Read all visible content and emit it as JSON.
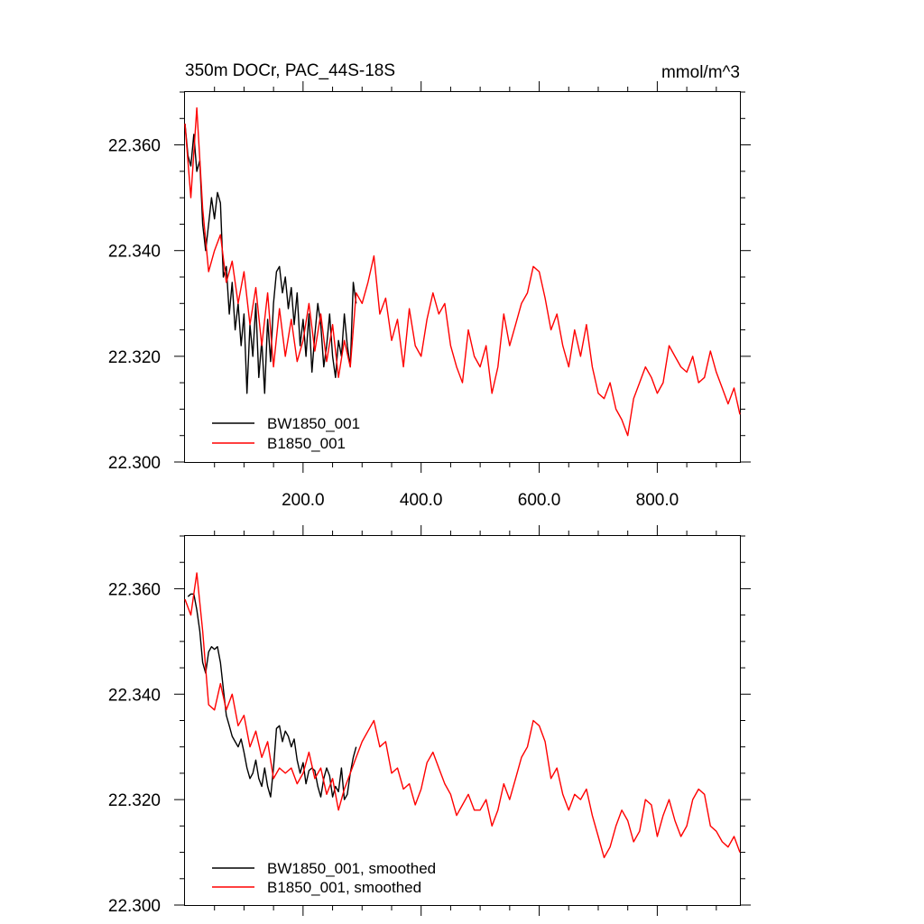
{
  "chart_data": [
    {
      "type": "line",
      "title_left": "350m DOCr, PAC_44S-18S",
      "title_right": "mmol/m^3",
      "xlabel": "",
      "ylabel": "",
      "xlim": [
        0,
        940
      ],
      "ylim": [
        22.3,
        22.37
      ],
      "x_ticks": [
        200,
        400,
        600,
        800
      ],
      "x_tick_labels": [
        "200.0",
        "400.0",
        "600.0",
        "800.0"
      ],
      "y_ticks": [
        22.3,
        22.32,
        22.34,
        22.36
      ],
      "y_tick_labels": [
        "22.300",
        "22.320",
        "22.340",
        "22.360"
      ],
      "grid": false,
      "legend_position": "bottom-left",
      "series": [
        {
          "name": "BW1850_001",
          "color": "#000000",
          "x": [
            0,
            5,
            10,
            15,
            20,
            25,
            30,
            35,
            40,
            45,
            50,
            55,
            60,
            65,
            70,
            75,
            80,
            85,
            90,
            95,
            100,
            105,
            110,
            115,
            120,
            125,
            130,
            135,
            140,
            145,
            150,
            155,
            160,
            165,
            170,
            175,
            180,
            185,
            190,
            195,
            200,
            205,
            210,
            215,
            220,
            225,
            230,
            235,
            240,
            245,
            250,
            255,
            260,
            265,
            270,
            275,
            280,
            285,
            290
          ],
          "values": [
            22.364,
            22.358,
            22.356,
            22.362,
            22.355,
            22.357,
            22.345,
            22.34,
            22.345,
            22.35,
            22.346,
            22.351,
            22.349,
            22.335,
            22.337,
            22.328,
            22.334,
            22.325,
            22.33,
            22.322,
            22.328,
            22.313,
            22.326,
            22.32,
            22.33,
            22.316,
            22.323,
            22.313,
            22.327,
            22.319,
            22.33,
            22.336,
            22.337,
            22.332,
            22.335,
            22.329,
            22.333,
            22.326,
            22.332,
            22.322,
            22.327,
            22.32,
            22.328,
            22.317,
            22.324,
            22.33,
            22.326,
            22.318,
            22.322,
            22.328,
            22.32,
            22.316,
            22.323,
            22.32,
            22.328,
            22.322,
            22.318,
            22.334,
            22.33
          ]
        },
        {
          "name": "B1850_001",
          "color": "#ff0000",
          "x": [
            0,
            10,
            20,
            30,
            40,
            50,
            60,
            70,
            80,
            90,
            100,
            110,
            120,
            130,
            140,
            150,
            160,
            170,
            180,
            190,
            200,
            210,
            220,
            230,
            240,
            250,
            260,
            270,
            280,
            290,
            300,
            310,
            320,
            330,
            340,
            350,
            360,
            370,
            380,
            390,
            400,
            410,
            420,
            430,
            440,
            450,
            460,
            470,
            480,
            490,
            500,
            510,
            520,
            530,
            540,
            550,
            560,
            570,
            580,
            590,
            600,
            610,
            620,
            630,
            640,
            650,
            660,
            670,
            680,
            690,
            700,
            710,
            720,
            730,
            740,
            750,
            760,
            770,
            780,
            790,
            800,
            810,
            820,
            830,
            840,
            850,
            860,
            870,
            880,
            890,
            900,
            910,
            920,
            930,
            940
          ],
          "values": [
            22.364,
            22.35,
            22.367,
            22.348,
            22.336,
            22.34,
            22.343,
            22.334,
            22.338,
            22.33,
            22.336,
            22.326,
            22.333,
            22.322,
            22.332,
            22.318,
            22.329,
            22.32,
            22.327,
            22.319,
            22.323,
            22.33,
            22.321,
            22.328,
            22.319,
            22.326,
            22.316,
            22.323,
            22.318,
            22.332,
            22.33,
            22.334,
            22.339,
            22.328,
            22.331,
            22.323,
            22.327,
            22.318,
            22.329,
            22.322,
            22.32,
            22.327,
            22.332,
            22.328,
            22.33,
            22.322,
            22.318,
            22.315,
            22.325,
            22.32,
            22.318,
            22.322,
            22.313,
            22.318,
            22.328,
            22.322,
            22.326,
            22.33,
            22.332,
            22.337,
            22.336,
            22.331,
            22.325,
            22.328,
            22.322,
            22.318,
            22.325,
            22.32,
            22.326,
            22.318,
            22.313,
            22.312,
            22.315,
            22.31,
            22.308,
            22.305,
            22.312,
            22.315,
            22.318,
            22.316,
            22.313,
            22.315,
            22.322,
            22.32,
            22.318,
            22.317,
            22.32,
            22.315,
            22.316,
            22.321,
            22.317,
            22.314,
            22.311,
            22.314,
            22.309
          ]
        }
      ]
    },
    {
      "type": "line",
      "title_left": "",
      "title_right": "",
      "xlabel": "",
      "ylabel": "",
      "xlim": [
        0,
        940
      ],
      "ylim": [
        22.3,
        22.37
      ],
      "x_ticks": [
        200,
        400,
        600,
        800
      ],
      "x_tick_labels": [],
      "y_ticks": [
        22.3,
        22.32,
        22.34,
        22.36
      ],
      "y_tick_labels": [
        "22.300",
        "22.320",
        "22.340",
        "22.360"
      ],
      "grid": false,
      "legend_position": "bottom-left",
      "series": [
        {
          "name": "BW1850_001, smoothed",
          "color": "#000000",
          "x": [
            5,
            10,
            15,
            20,
            25,
            30,
            35,
            40,
            45,
            50,
            55,
            60,
            65,
            70,
            75,
            80,
            85,
            90,
            95,
            100,
            105,
            110,
            115,
            120,
            125,
            130,
            135,
            140,
            145,
            150,
            155,
            160,
            165,
            170,
            175,
            180,
            185,
            190,
            195,
            200,
            205,
            210,
            215,
            220,
            225,
            230,
            235,
            240,
            245,
            250,
            255,
            260,
            265,
            270,
            275,
            280,
            285,
            290
          ],
          "values": [
            22.3585,
            22.359,
            22.359,
            22.356,
            22.352,
            22.346,
            22.344,
            22.348,
            22.349,
            22.3485,
            22.349,
            22.346,
            22.341,
            22.336,
            22.334,
            22.332,
            22.331,
            22.33,
            22.3315,
            22.329,
            22.326,
            22.324,
            22.325,
            22.3275,
            22.324,
            22.3225,
            22.326,
            22.3225,
            22.3205,
            22.326,
            22.3335,
            22.334,
            22.331,
            22.333,
            22.332,
            22.33,
            22.3315,
            22.3275,
            22.325,
            22.327,
            22.323,
            22.3255,
            22.326,
            22.3255,
            22.3225,
            22.3205,
            22.324,
            22.326,
            22.3245,
            22.3205,
            22.3225,
            22.3215,
            22.326,
            22.32,
            22.321,
            22.325,
            22.328,
            22.33
          ]
        },
        {
          "name": "B1850_001, smoothed",
          "color": "#ff0000",
          "x": [
            0,
            10,
            20,
            30,
            40,
            50,
            60,
            70,
            80,
            90,
            100,
            110,
            120,
            130,
            140,
            150,
            160,
            170,
            180,
            190,
            200,
            210,
            220,
            230,
            240,
            250,
            260,
            270,
            280,
            290,
            300,
            310,
            320,
            330,
            340,
            350,
            360,
            370,
            380,
            390,
            400,
            410,
            420,
            430,
            440,
            450,
            460,
            470,
            480,
            490,
            500,
            510,
            520,
            530,
            540,
            550,
            560,
            570,
            580,
            590,
            600,
            610,
            620,
            630,
            640,
            650,
            660,
            670,
            680,
            690,
            700,
            710,
            720,
            730,
            740,
            750,
            760,
            770,
            780,
            790,
            800,
            810,
            820,
            830,
            840,
            850,
            860,
            870,
            880,
            890,
            900,
            910,
            920,
            930,
            940
          ],
          "values": [
            22.358,
            22.355,
            22.363,
            22.352,
            22.338,
            22.337,
            22.342,
            22.337,
            22.34,
            22.334,
            22.336,
            22.33,
            22.333,
            22.328,
            22.331,
            22.324,
            22.326,
            22.325,
            22.326,
            22.323,
            22.325,
            22.329,
            22.324,
            22.326,
            22.321,
            22.324,
            22.318,
            22.322,
            22.325,
            22.328,
            22.331,
            22.333,
            22.335,
            22.33,
            22.331,
            22.325,
            22.326,
            22.322,
            22.323,
            22.319,
            22.322,
            22.327,
            22.329,
            22.326,
            22.323,
            22.321,
            22.317,
            22.319,
            22.321,
            22.318,
            22.318,
            22.32,
            22.315,
            22.318,
            22.323,
            22.32,
            22.324,
            22.328,
            22.33,
            22.335,
            22.334,
            22.331,
            22.324,
            22.326,
            22.321,
            22.318,
            22.321,
            22.32,
            22.322,
            22.317,
            22.313,
            22.309,
            22.311,
            22.315,
            22.318,
            22.316,
            22.312,
            22.314,
            22.32,
            22.319,
            22.313,
            22.317,
            22.32,
            22.316,
            22.313,
            22.315,
            22.32,
            22.322,
            22.321,
            22.315,
            22.314,
            22.312,
            22.311,
            22.313,
            22.31
          ]
        }
      ]
    }
  ]
}
